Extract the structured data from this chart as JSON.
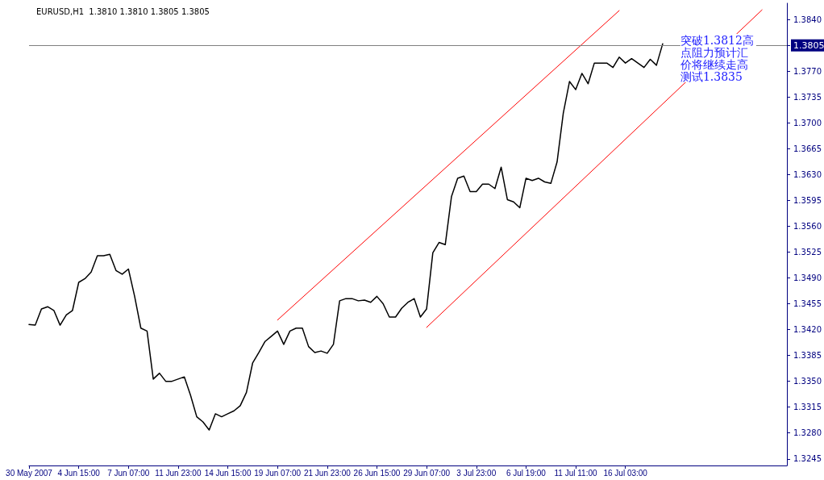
{
  "chart_data": {
    "type": "line",
    "title": "EURUSD,H1  1.3810 1.3810 1.3805 1.3805",
    "categories": [
      "30 May 2007",
      null,
      null,
      null,
      null,
      null,
      null,
      null,
      "4 Jun 15:00",
      null,
      null,
      null,
      null,
      null,
      null,
      null,
      "7 Jun 07:00",
      null,
      null,
      null,
      null,
      null,
      null,
      null,
      "11 Jun 23:00",
      null,
      null,
      null,
      null,
      null,
      null,
      null,
      "14 Jun 15:00",
      null,
      null,
      null,
      null,
      null,
      null,
      null,
      "19 Jun 07:00",
      null,
      null,
      null,
      null,
      null,
      null,
      null,
      "21 Jun 23:00",
      null,
      null,
      null,
      null,
      null,
      null,
      null,
      "26 Jun 15:00",
      null,
      null,
      null,
      null,
      null,
      null,
      null,
      "29 Jun 07:00",
      null,
      null,
      null,
      null,
      null,
      null,
      null,
      "3 Jul 23:00",
      null,
      null,
      null,
      null,
      null,
      null,
      null,
      "6 Jul 19:00",
      null,
      null,
      null,
      null,
      null,
      null,
      null,
      "11 Jul 11:00",
      null,
      null,
      null,
      null,
      null,
      null,
      null,
      "16 Jul 03:00",
      null,
      null,
      null,
      null,
      null,
      null,
      null,
      null,
      null,
      null,
      null,
      null,
      null,
      null,
      null,
      null,
      null,
      null,
      null,
      null,
      null,
      null,
      null,
      null,
      null,
      null
    ],
    "series": [
      {
        "color": "#000000",
        "values": [
          1.3427,
          1.3426,
          1.3448,
          1.3451,
          1.3446,
          1.3426,
          1.344,
          1.3446,
          1.3484,
          1.3489,
          1.3498,
          1.352,
          1.352,
          1.3522,
          1.35,
          1.3495,
          1.3502,
          1.3465,
          1.3422,
          1.3418,
          1.3353,
          1.3361,
          1.335,
          1.335,
          1.3353,
          1.3356,
          1.3331,
          1.3302,
          1.3295,
          1.3284,
          1.3306,
          1.3302,
          1.3306,
          1.331,
          1.3317,
          1.3335,
          1.3375,
          1.3389,
          1.3404,
          1.3411,
          1.3418,
          1.34,
          1.3418,
          1.3422,
          1.3422,
          1.3397,
          1.3389,
          1.3391,
          1.3388,
          1.34,
          1.3459,
          1.3462,
          1.3462,
          1.3459,
          1.346,
          1.3457,
          1.3465,
          1.3455,
          1.3437,
          1.3437,
          1.3449,
          1.3457,
          1.3462,
          1.3437,
          1.3448,
          1.3524,
          1.3538,
          1.3535,
          1.36,
          1.3625,
          1.3628,
          1.3607,
          1.3607,
          1.3617,
          1.3617,
          1.3611,
          1.364,
          1.3596,
          1.3593,
          1.3585,
          1.3625,
          1.3622,
          1.3625,
          1.362,
          1.3618,
          1.3647,
          1.3713,
          1.3756,
          1.3745,
          1.3767,
          1.3753,
          1.3781,
          1.3781,
          1.3781,
          1.3775,
          1.3789,
          1.3781,
          1.3787,
          1.3781,
          1.3775,
          1.3786,
          1.3778,
          1.3807,
          null,
          null,
          null,
          null,
          null,
          null,
          null,
          null,
          null,
          null,
          null,
          null,
          null,
          null,
          null,
          null,
          null,
          null,
          null,
          null
        ]
      },
      {
        "color": "#ff0000",
        "values": [
          null,
          null,
          null,
          null,
          null,
          null,
          null,
          null,
          null,
          null,
          null,
          null,
          null,
          null,
          null,
          null,
          null,
          null,
          null,
          null,
          null,
          null,
          null,
          null,
          null,
          null,
          null,
          null,
          null,
          null,
          null,
          null,
          null,
          null,
          null,
          null,
          null,
          null,
          null,
          null,
          1.3433,
          null,
          null,
          null,
          null,
          null,
          null,
          null,
          null,
          null,
          null,
          null,
          null,
          null,
          null,
          null,
          null,
          null,
          null,
          null,
          null,
          null,
          null,
          null,
          null,
          null,
          null,
          null,
          null,
          null,
          null,
          null,
          null,
          null,
          null,
          null,
          null,
          null,
          null,
          null,
          null,
          null,
          null,
          null,
          null,
          null,
          null,
          null,
          null,
          null,
          null,
          null,
          null,
          null,
          null,
          1.3852,
          null,
          null,
          null,
          null,
          null,
          null,
          null,
          null,
          null,
          null,
          null,
          null,
          null,
          null,
          null,
          null,
          null,
          null,
          null,
          null,
          null,
          null,
          null,
          null,
          null,
          null,
          null
        ]
      },
      {
        "color": "#ff0000",
        "values": [
          null,
          null,
          null,
          null,
          null,
          null,
          null,
          null,
          null,
          null,
          null,
          null,
          null,
          null,
          null,
          null,
          null,
          null,
          null,
          null,
          null,
          null,
          null,
          null,
          null,
          null,
          null,
          null,
          null,
          null,
          null,
          null,
          null,
          null,
          null,
          null,
          null,
          null,
          null,
          null,
          null,
          null,
          null,
          null,
          null,
          null,
          null,
          null,
          null,
          null,
          null,
          null,
          null,
          null,
          null,
          null,
          null,
          null,
          null,
          null,
          null,
          null,
          null,
          null,
          1.3423,
          null,
          null,
          null,
          null,
          null,
          null,
          null,
          null,
          null,
          null,
          null,
          null,
          null,
          null,
          null,
          null,
          null,
          null,
          null,
          null,
          null,
          null,
          null,
          null,
          null,
          null,
          null,
          null,
          null,
          null,
          null,
          null,
          null,
          null,
          null,
          null,
          null,
          null,
          null,
          null,
          null,
          null,
          null,
          null,
          null,
          null,
          null,
          null,
          null,
          null,
          null,
          null,
          null,
          1.3853,
          null,
          null,
          null,
          null
        ]
      }
    ],
    "ylim": [
      1.3236,
      1.3862
    ],
    "yticks": [
      1.3245,
      {
        "value": 1.328,
        "label": "1.3280"
      },
      1.3315,
      {
        "value": 1.335,
        "label": "1.3350"
      },
      1.3385,
      {
        "value": 1.342,
        "label": "1.3420"
      },
      1.3455,
      {
        "value": 1.349,
        "label": "1.3490"
      },
      1.3525,
      {
        "value": 1.356,
        "label": "1.3560"
      },
      1.3595,
      {
        "value": 1.363,
        "label": "1.3630"
      },
      1.3665,
      {
        "value": 1.37,
        "label": "1.3700"
      },
      1.3735,
      {
        "value": 1.377,
        "label": "1.3770"
      },
      1.3805,
      {
        "value": 1.384,
        "label": "1.3840"
      }
    ],
    "ref_lines": [
      {
        "axis": "y",
        "value": 1.3805,
        "label": "1.3805",
        "color": "#808080"
      }
    ],
    "annotations": [
      "突破1.3812高点阻力预计汇价将继续走高测试1.3835"
    ],
    "grid": false,
    "marker": "none",
    "line_style": "solid"
  }
}
